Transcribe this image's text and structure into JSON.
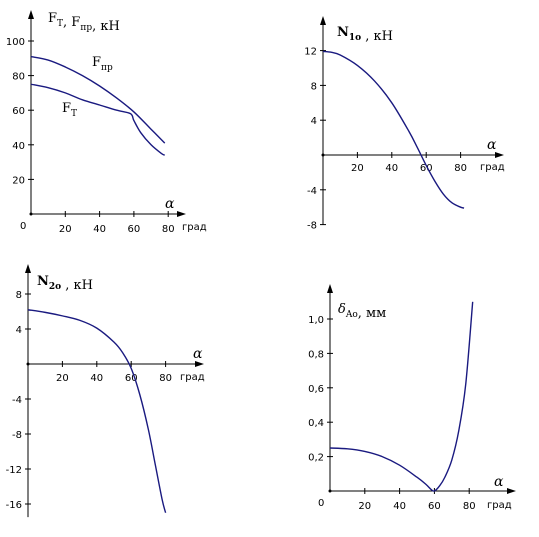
{
  "chart_data": [
    {
      "type": "line",
      "ylabel": "FТ, Fпр, кН",
      "ylabel_parts": [
        {
          "text": "F",
          "sub": "Т"
        },
        {
          "text": ", F",
          "sub": "пр"
        },
        {
          "text": ", кН",
          "sub": ""
        }
      ],
      "xlabel_symbol": "α",
      "xlabel_unit": "град",
      "xlim": [
        0,
        85
      ],
      "ylim": [
        0,
        105
      ],
      "xticks": [
        "20",
        "40",
        "60",
        "80"
      ],
      "yticks": [
        "20",
        "40",
        "60",
        "80",
        "100"
      ],
      "origin_label": "0",
      "grid": false,
      "series": [
        {
          "name": "Fпр",
          "name_parts": {
            "text": "F",
            "sub": "пр"
          },
          "x": [
            0,
            10,
            20,
            30,
            40,
            50,
            60,
            70,
            78
          ],
          "y": [
            91,
            89,
            85,
            80,
            74,
            67,
            59,
            49,
            41
          ]
        },
        {
          "name": "FТ",
          "name_parts": {
            "text": "F",
            "sub": "Т"
          },
          "x": [
            0,
            10,
            20,
            30,
            40,
            50,
            58,
            60,
            64,
            70,
            76,
            78
          ],
          "y": [
            75,
            73,
            70,
            66,
            63,
            60,
            58,
            54,
            47,
            40,
            35,
            34
          ]
        }
      ]
    },
    {
      "type": "line",
      "ylabel": "N1о , кН",
      "ylabel_parts": [
        {
          "text": "N",
          "sub": "1o",
          "bold": true
        },
        {
          "text": " , кН",
          "sub": ""
        }
      ],
      "xlabel_symbol": "α",
      "xlabel_unit": "град",
      "xlim": [
        0,
        90
      ],
      "ylim": [
        -8,
        14
      ],
      "xticks": [
        "20",
        "40",
        "60",
        "80"
      ],
      "yticks": [
        "-8",
        "-4",
        "4",
        "8",
        "12"
      ],
      "grid": false,
      "series": [
        {
          "x": [
            0,
            5,
            10,
            20,
            30,
            40,
            50,
            55,
            60,
            65,
            70,
            75,
            80,
            82
          ],
          "y": [
            11.9,
            11.8,
            11.5,
            10.3,
            8.5,
            6,
            2.7,
            0.8,
            -1.2,
            -3,
            -4.5,
            -5.5,
            -6,
            -6.1
          ]
        }
      ]
    },
    {
      "type": "line",
      "ylabel": "N2о , кН",
      "ylabel_parts": [
        {
          "text": "N",
          "sub": "2o",
          "bold": true
        },
        {
          "text": " , кН",
          "sub": ""
        }
      ],
      "xlabel_symbol": "α",
      "xlabel_unit": "град",
      "xlim": [
        0,
        90
      ],
      "ylim": [
        -17.5,
        9
      ],
      "xticks": [
        "20",
        "40",
        "60",
        "80"
      ],
      "yticks": [
        "-16",
        "-12",
        "-8",
        "-4",
        "4",
        "8"
      ],
      "grid": false,
      "series": [
        {
          "x": [
            0,
            10,
            20,
            30,
            40,
            50,
            55,
            60,
            65,
            70,
            74,
            78,
            80
          ],
          "y": [
            6.2,
            5.9,
            5.5,
            5,
            4.1,
            2.5,
            1.3,
            -0.5,
            -3.5,
            -7.5,
            -11.5,
            -15.5,
            -17
          ]
        }
      ]
    },
    {
      "type": "line",
      "ylabel": "δAo, мм",
      "ylabel_parts": [
        {
          "text": "δ",
          "sub": "Ao",
          "italic": true
        },
        {
          "text": ", мм",
          "sub": ""
        }
      ],
      "xlabel_symbol": "α",
      "xlabel_unit": "град",
      "xlim": [
        0,
        90
      ],
      "ylim": [
        0,
        1.15
      ],
      "xticks": [
        "20",
        "40",
        "60",
        "80"
      ],
      "yticks": [
        "0,2",
        "0,4",
        "0,6",
        "0,8",
        "1,0"
      ],
      "origin_label": "0",
      "grid": false,
      "series": [
        {
          "x": [
            0,
            10,
            20,
            30,
            40,
            50,
            55,
            58,
            60,
            63,
            66,
            70,
            74,
            78,
            82
          ],
          "y": [
            0.25,
            0.245,
            0.23,
            0.2,
            0.15,
            0.08,
            0.04,
            0.01,
            0.0,
            0.03,
            0.08,
            0.18,
            0.35,
            0.62,
            1.1
          ]
        }
      ]
    }
  ]
}
